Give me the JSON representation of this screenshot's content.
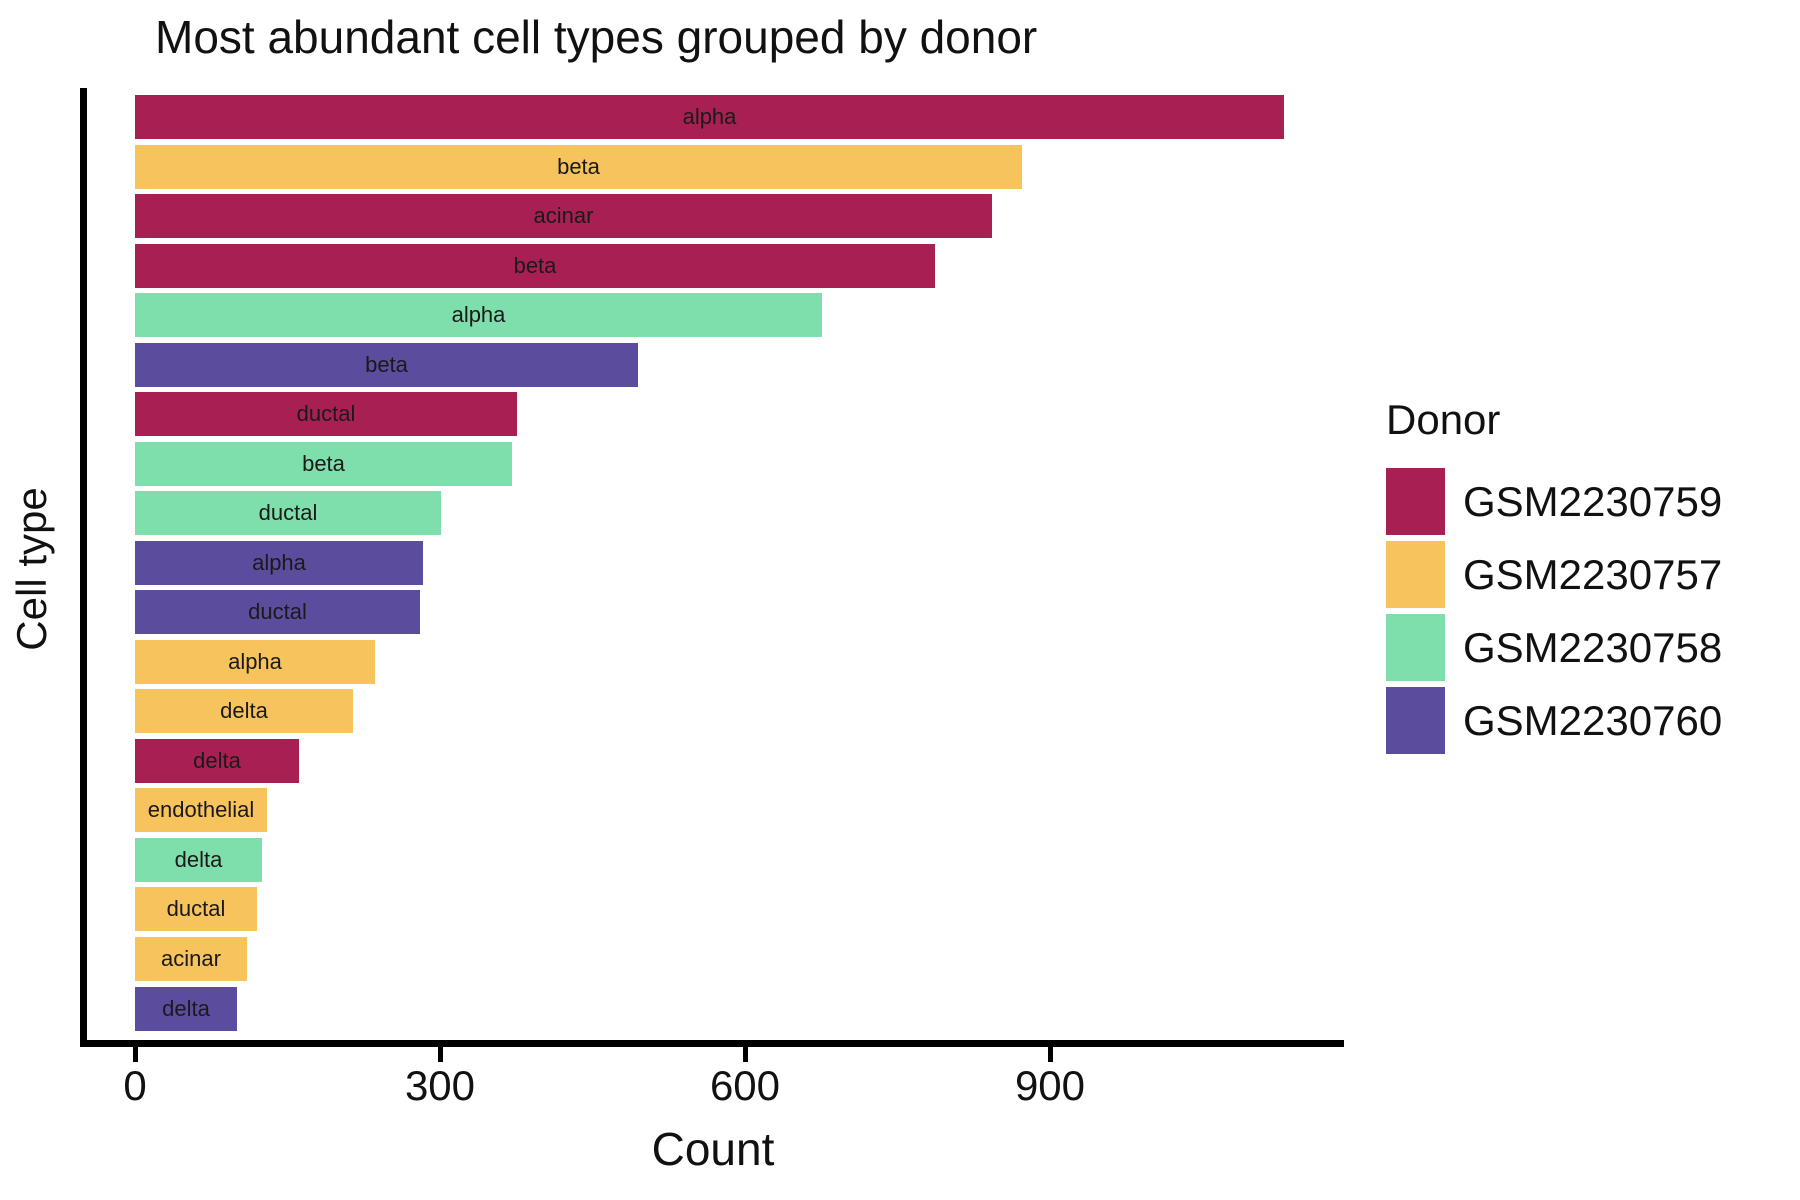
{
  "chart_data": {
    "type": "bar",
    "orientation": "horizontal",
    "title": "Most abundant cell types grouped by donor",
    "xlabel": "Count",
    "ylabel": "Cell type",
    "x_ticks": [
      0,
      300,
      600,
      900
    ],
    "xlim": [
      0,
      1190
    ],
    "grid": false,
    "bar_label_position": "inside-center",
    "bars": [
      {
        "label": "alpha",
        "donor": "GSM2230759",
        "value": 1130
      },
      {
        "label": "beta",
        "donor": "GSM2230757",
        "value": 872
      },
      {
        "label": "acinar",
        "donor": "GSM2230759",
        "value": 843
      },
      {
        "label": "beta",
        "donor": "GSM2230759",
        "value": 787
      },
      {
        "label": "alpha",
        "donor": "GSM2230758",
        "value": 676
      },
      {
        "label": "beta",
        "donor": "GSM2230760",
        "value": 495
      },
      {
        "label": "ductal",
        "donor": "GSM2230759",
        "value": 376
      },
      {
        "label": "beta",
        "donor": "GSM2230758",
        "value": 371
      },
      {
        "label": "ductal",
        "donor": "GSM2230758",
        "value": 301
      },
      {
        "label": "alpha",
        "donor": "GSM2230760",
        "value": 283
      },
      {
        "label": "ductal",
        "donor": "GSM2230760",
        "value": 280
      },
      {
        "label": "alpha",
        "donor": "GSM2230757",
        "value": 236
      },
      {
        "label": "delta",
        "donor": "GSM2230757",
        "value": 214
      },
      {
        "label": "delta",
        "donor": "GSM2230759",
        "value": 161
      },
      {
        "label": "endothelial",
        "donor": "GSM2230757",
        "value": 130
      },
      {
        "label": "delta",
        "donor": "GSM2230758",
        "value": 125
      },
      {
        "label": "ductal",
        "donor": "GSM2230757",
        "value": 120
      },
      {
        "label": "acinar",
        "donor": "GSM2230757",
        "value": 110
      },
      {
        "label": "delta",
        "donor": "GSM2230760",
        "value": 100
      }
    ],
    "legend": {
      "title": "Donor",
      "position": "right",
      "entries": [
        {
          "label": "GSM2230759",
          "color": "#A82053"
        },
        {
          "label": "GSM2230757",
          "color": "#F6C35D"
        },
        {
          "label": "GSM2230758",
          "color": "#7EDEAC"
        },
        {
          "label": "GSM2230760",
          "color": "#5C4C9E"
        }
      ]
    },
    "colors": {
      "GSM2230759": "#A82053",
      "GSM2230757": "#F6C35D",
      "GSM2230758": "#7EDEAC",
      "GSM2230760": "#5C4C9E",
      "axis": "#000000",
      "text": "#111111"
    }
  }
}
